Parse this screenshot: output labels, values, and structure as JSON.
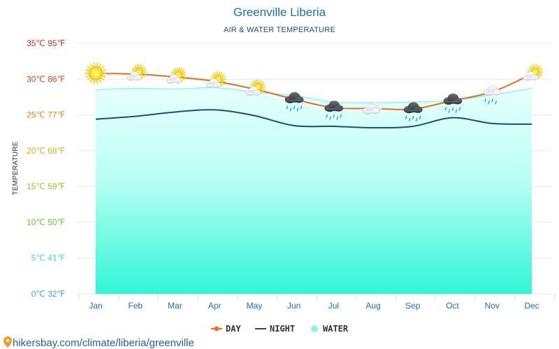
{
  "header": {
    "title": "Greenville Liberia",
    "subtitle": "AIR & WATER TEMPERATURE"
  },
  "footer": {
    "url": "hikersbay.com/climate/liberia/greenville"
  },
  "chart_data": {
    "type": "line",
    "title": "Greenville Liberia",
    "subtitle": "AIR & WATER TEMPERATURE",
    "ylabel": "TEMPERATURE",
    "xlabel": "",
    "ylim": [
      0,
      35
    ],
    "grid": true,
    "categories": [
      "Jan",
      "Feb",
      "Mar",
      "Apr",
      "May",
      "Jun",
      "Jul",
      "Aug",
      "Sep",
      "Oct",
      "Nov",
      "Dec"
    ],
    "y_ticks": [
      {
        "value": 35,
        "label": "35℃ 95℉",
        "color": "#d1311f"
      },
      {
        "value": 30,
        "label": "30℃ 86℉",
        "color": "#d14b1b"
      },
      {
        "value": 25,
        "label": "25℃ 77℉",
        "color": "#e08516"
      },
      {
        "value": 20,
        "label": "20℃ 68℉",
        "color": "#d7b21e"
      },
      {
        "value": 15,
        "label": "15℃ 59℉",
        "color": "#a9c122"
      },
      {
        "value": 10,
        "label": "10℃ 50℉",
        "color": "#6cc52b"
      },
      {
        "value": 5,
        "label": "5℃ 41℉",
        "color": "#4ed3c7"
      },
      {
        "value": 0,
        "label": "0℃ 32℉",
        "color": "#3ba7d8"
      }
    ],
    "series": [
      {
        "name": "DAY",
        "color": "#f26a1b",
        "values": [
          30.8,
          30.7,
          30.3,
          29.7,
          28.6,
          27.2,
          26.0,
          25.9,
          25.8,
          27.0,
          28.2,
          30.7
        ]
      },
      {
        "name": "NIGHT",
        "color": "#1f4e6d",
        "values": [
          24.4,
          24.8,
          25.4,
          25.7,
          24.9,
          23.5,
          23.4,
          23.2,
          23.4,
          24.6,
          23.8,
          23.7
        ]
      },
      {
        "name": "WATER",
        "color": "#8ef2ef",
        "values": [
          28.5,
          28.7,
          28.6,
          28.8,
          28.2,
          27.7,
          26.8,
          26.7,
          26.8,
          27.0,
          27.8,
          28.7
        ]
      }
    ],
    "weather_icons": [
      "sun",
      "partly-cloudy",
      "partly-cloudy",
      "partly-cloudy",
      "partly-cloudy",
      "rain-cloud",
      "rain-cloud",
      "cloudy",
      "rain-cloud",
      "rain-cloud",
      "light-rain",
      "partly-cloudy"
    ],
    "legend": {
      "position": "bottom-center",
      "items": [
        {
          "label": "DAY",
          "color": "#f26a1b"
        },
        {
          "label": "NIGHT",
          "color": "#1f4e6d"
        },
        {
          "label": "WATER",
          "color": "#8ef2ef"
        }
      ]
    }
  }
}
